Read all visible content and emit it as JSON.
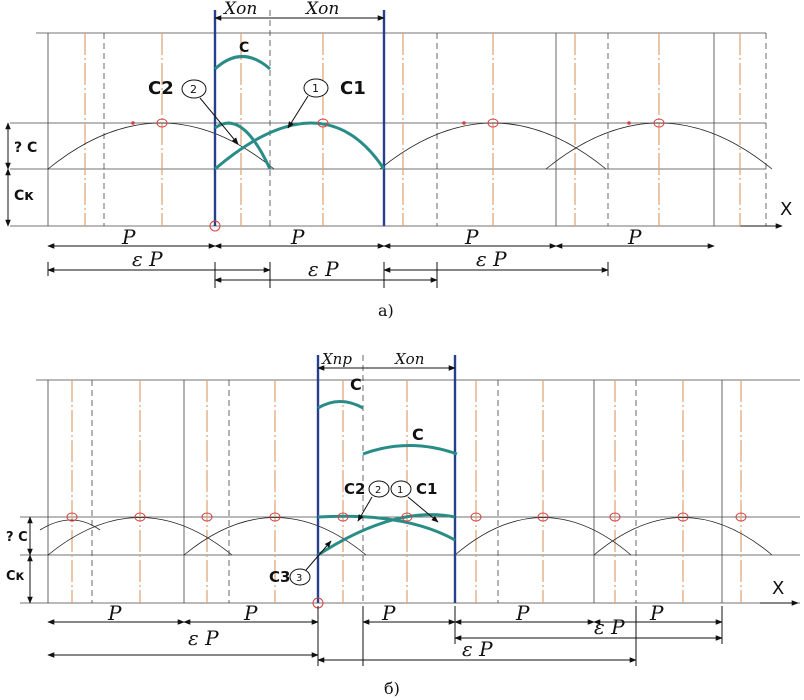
{
  "panel_a": {
    "caption": "а)",
    "top_labels": [
      "Хоп",
      "Хоп"
    ],
    "curve_labels": {
      "c": "C",
      "c1": "C1",
      "c2": "C2",
      "n1": "1",
      "n2": "2"
    },
    "left_labels": {
      "dc": "? C",
      "ck": "Cк"
    },
    "axis_label": "X",
    "p_labels": [
      "P",
      "P",
      "P",
      "P"
    ],
    "ep_labels": [
      "ε P",
      "ε P",
      "ε P"
    ]
  },
  "panel_b": {
    "caption": "б)",
    "top_labels": [
      "Хпр",
      "Хоп"
    ],
    "curve_labels": {
      "c_top": "C",
      "c_mid": "C",
      "c1": "C1",
      "c2": "C2",
      "c3": "C3",
      "n1": "1",
      "n2": "2",
      "n3": "3"
    },
    "left_labels": {
      "dc": "? C",
      "ck": "Cк"
    },
    "axis_label": "X",
    "p_labels": [
      "P",
      "P",
      "P",
      "P",
      "P"
    ],
    "ep_labels": [
      "ε P",
      "ε P",
      "ε P"
    ]
  },
  "colors": {
    "line": "#333333",
    "teal": "#2a8c87",
    "blue": "#27408b",
    "orange": "#e0a070",
    "marker": "#d84040"
  }
}
